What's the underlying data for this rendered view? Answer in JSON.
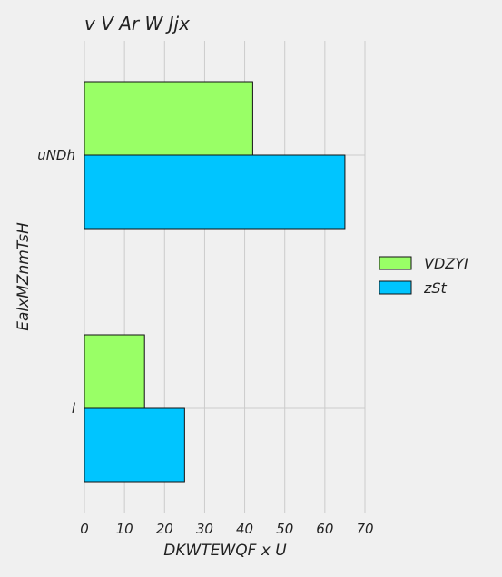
{
  "chart_data": {
    "type": "bar",
    "orientation": "horizontal",
    "title": "v V   Ar W Jjx",
    "xlabel": "DKWTEWQF x  U",
    "ylabel": "EalxMZnmTsH",
    "categories": [
      "uNDh",
      "l"
    ],
    "series": [
      {
        "name": "VDZYI",
        "values": [
          42,
          15
        ],
        "color": "#99ff66"
      },
      {
        "name": "zSt",
        "values": [
          65,
          25
        ],
        "color": "#00c5ff"
      }
    ],
    "xlim": [
      0,
      70
    ],
    "xticks": [
      "0",
      "10",
      "20",
      "30",
      "40",
      "50",
      "60",
      "70"
    ],
    "grid": true,
    "legend": "right"
  }
}
